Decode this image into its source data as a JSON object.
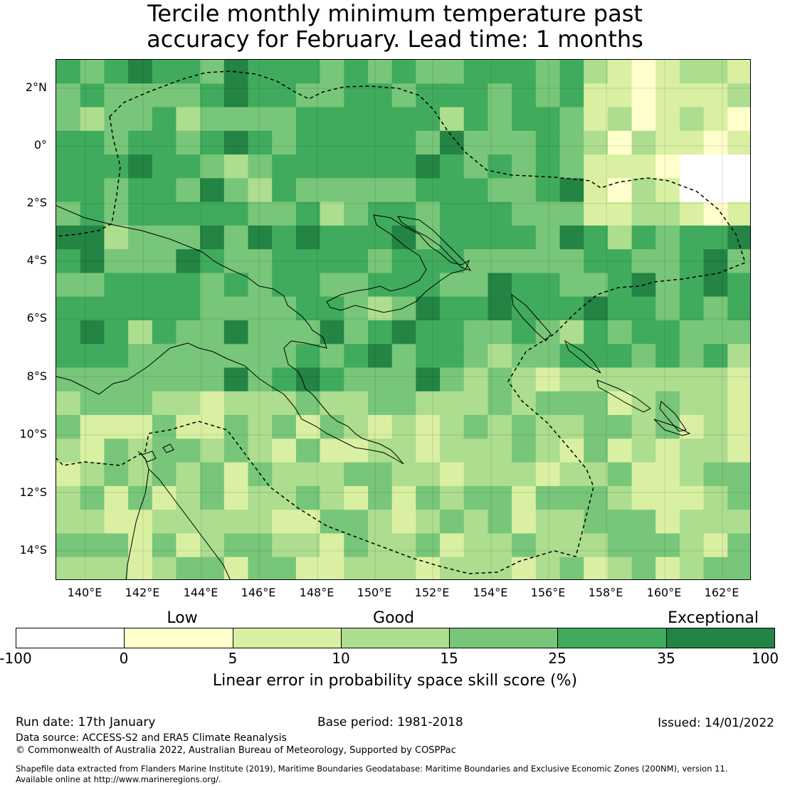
{
  "title_line1": "Tercile monthly minimum temperature past",
  "title_line2": "accuracy for February. Lead time: 1 months",
  "map": {
    "lat_labels": [
      "2°N",
      "0°",
      "2°S",
      "4°S",
      "6°S",
      "8°S",
      "10°S",
      "12°S",
      "14°S"
    ],
    "lon_labels": [
      "140°E",
      "142°E",
      "144°E",
      "146°E",
      "148°E",
      "150°E",
      "152°E",
      "154°E",
      "156°E",
      "158°E",
      "160°E",
      "162°E"
    ],
    "lon_range": [
      139,
      163
    ],
    "lat_range": [
      -15,
      3
    ],
    "grid_step_deg": 0.833,
    "colors": {
      "band_-100_0": "#ffffff",
      "band_0_5": "#ffffcc",
      "band_5_10": "#d9f0a3",
      "band_10_15": "#addd8e",
      "band_15_25": "#78c679",
      "band_25_35": "#41ab5d",
      "band_35_100": "#238443",
      "coastline": "#000000",
      "eez_boundary": "#000000"
    }
  },
  "legend": {
    "categories": [
      "Low",
      "Good",
      "Exceptional"
    ],
    "ticks": [
      "-100",
      "0",
      "5",
      "10",
      "15",
      "25",
      "35",
      "100"
    ],
    "label": "Linear error in probability space skill score (%)"
  },
  "footer": {
    "run_date": "Run date: 17th January",
    "base_period": "Base period: 1981-2018",
    "issued": "Issued: 14/01/2022",
    "data_source": "Data source: ACCESS-S2 and ERA5 Climate Reanalysis",
    "copyright": "© Commonwealth of Australia 2022, Australian Bureau of Meteorology, Supported by COSPPac",
    "shapefile_1": "Shapefile data extracted from Flanders Marine Institute (2019), Maritime Boundaries Geodatabase: Maritime Boundaries and Exclusive Economic Zones (200NM), version 11.",
    "shapefile_2": "Available online at http://www.marineregions.org/."
  }
}
